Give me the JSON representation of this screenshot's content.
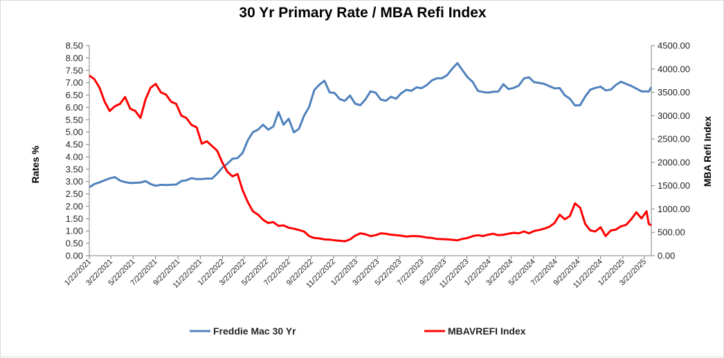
{
  "chart_data": {
    "type": "line",
    "title": "30 Yr Primary Rate / MBA Refi Index",
    "ylabel": "Rates %",
    "y2label": "MBA Refi Index",
    "ylim": [
      0,
      8.5
    ],
    "y2lim": [
      0,
      4500
    ],
    "yticks": [
      "0.00",
      "0.50",
      "1.00",
      "1.50",
      "2.00",
      "2.50",
      "3.00",
      "3.50",
      "4.00",
      "4.50",
      "5.00",
      "5.50",
      "6.00",
      "6.50",
      "7.00",
      "7.50",
      "8.00",
      "8.50"
    ],
    "y2ticks": [
      "0.00",
      "500.00",
      "1000.00",
      "1500.00",
      "2000.00",
      "2500.00",
      "3000.00",
      "3500.00",
      "4000.00",
      "4500.00"
    ],
    "xlim": [
      "1/22/2021",
      "4/10/2025"
    ],
    "xticks": [
      "1/22/2021",
      "3/22/2021",
      "5/22/2021",
      "7/22/2021",
      "9/22/2021",
      "11/22/2021",
      "1/22/2022",
      "3/22/2022",
      "5/22/2022",
      "7/22/2022",
      "9/22/2022",
      "11/22/2022",
      "1/22/2023",
      "3/22/2023",
      "5/22/2023",
      "7/22/2023",
      "9/22/2023",
      "11/22/2023",
      "1/22/2024",
      "3/22/2024",
      "5/22/2024",
      "7/22/2024",
      "9/22/2024",
      "11/22/2024",
      "1/22/2025",
      "3/22/2025"
    ],
    "legend_position": "bottom",
    "grid": false,
    "series": [
      {
        "name": "Freddie Mac 30 Yr",
        "axis": "left",
        "color": "#4f81bd",
        "points": [
          [
            "1/22/2021",
            2.77
          ],
          [
            "2/5/2021",
            2.9
          ],
          [
            "2/19/2021",
            2.97
          ],
          [
            "3/5/2021",
            3.05
          ],
          [
            "3/19/2021",
            3.13
          ],
          [
            "4/2/2021",
            3.18
          ],
          [
            "4/16/2021",
            3.04
          ],
          [
            "4/30/2021",
            2.98
          ],
          [
            "5/14/2021",
            2.94
          ],
          [
            "5/28/2021",
            2.95
          ],
          [
            "6/11/2021",
            2.96
          ],
          [
            "6/25/2021",
            3.02
          ],
          [
            "7/9/2021",
            2.9
          ],
          [
            "7/23/2021",
            2.83
          ],
          [
            "8/6/2021",
            2.87
          ],
          [
            "8/20/2021",
            2.86
          ],
          [
            "9/3/2021",
            2.87
          ],
          [
            "9/17/2021",
            2.88
          ],
          [
            "10/1/2021",
            3.02
          ],
          [
            "10/15/2021",
            3.05
          ],
          [
            "10/29/2021",
            3.14
          ],
          [
            "11/12/2021",
            3.1
          ],
          [
            "11/26/2021",
            3.1
          ],
          [
            "12/10/2021",
            3.12
          ],
          [
            "12/24/2021",
            3.12
          ],
          [
            "1/7/2022",
            3.32
          ],
          [
            "1/21/2022",
            3.56
          ],
          [
            "2/4/2022",
            3.72
          ],
          [
            "2/18/2022",
            3.92
          ],
          [
            "3/4/2022",
            3.95
          ],
          [
            "3/18/2022",
            4.16
          ],
          [
            "4/1/2022",
            4.67
          ],
          [
            "4/15/2022",
            5.0
          ],
          [
            "4/29/2022",
            5.1
          ],
          [
            "5/13/2022",
            5.3
          ],
          [
            "5/27/2022",
            5.1
          ],
          [
            "6/10/2022",
            5.23
          ],
          [
            "6/24/2022",
            5.81
          ],
          [
            "7/8/2022",
            5.3
          ],
          [
            "7/22/2022",
            5.54
          ],
          [
            "8/5/2022",
            4.99
          ],
          [
            "8/19/2022",
            5.13
          ],
          [
            "9/2/2022",
            5.66
          ],
          [
            "9/16/2022",
            6.02
          ],
          [
            "9/30/2022",
            6.7
          ],
          [
            "10/14/2022",
            6.92
          ],
          [
            "10/28/2022",
            7.08
          ],
          [
            "11/11/2022",
            6.61
          ],
          [
            "11/25/2022",
            6.58
          ],
          [
            "12/9/2022",
            6.33
          ],
          [
            "12/23/2022",
            6.27
          ],
          [
            "1/6/2023",
            6.48
          ],
          [
            "1/20/2023",
            6.15
          ],
          [
            "2/3/2023",
            6.09
          ],
          [
            "2/17/2023",
            6.32
          ],
          [
            "3/3/2023",
            6.65
          ],
          [
            "3/17/2023",
            6.6
          ],
          [
            "3/31/2023",
            6.32
          ],
          [
            "4/14/2023",
            6.27
          ],
          [
            "4/28/2023",
            6.43
          ],
          [
            "5/12/2023",
            6.35
          ],
          [
            "5/26/2023",
            6.57
          ],
          [
            "6/9/2023",
            6.71
          ],
          [
            "6/23/2023",
            6.67
          ],
          [
            "7/7/2023",
            6.81
          ],
          [
            "7/21/2023",
            6.78
          ],
          [
            "8/4/2023",
            6.9
          ],
          [
            "8/18/2023",
            7.09
          ],
          [
            "9/1/2023",
            7.18
          ],
          [
            "9/15/2023",
            7.18
          ],
          [
            "9/29/2023",
            7.31
          ],
          [
            "10/13/2023",
            7.57
          ],
          [
            "10/27/2023",
            7.79
          ],
          [
            "11/10/2023",
            7.5
          ],
          [
            "11/24/2023",
            7.22
          ],
          [
            "12/8/2023",
            7.03
          ],
          [
            "12/22/2023",
            6.67
          ],
          [
            "1/5/2024",
            6.62
          ],
          [
            "1/19/2024",
            6.6
          ],
          [
            "2/2/2024",
            6.63
          ],
          [
            "2/16/2024",
            6.64
          ],
          [
            "3/1/2024",
            6.94
          ],
          [
            "3/15/2024",
            6.74
          ],
          [
            "3/29/2024",
            6.79
          ],
          [
            "4/12/2024",
            6.88
          ],
          [
            "4/26/2024",
            7.17
          ],
          [
            "5/10/2024",
            7.22
          ],
          [
            "5/24/2024",
            7.02
          ],
          [
            "6/7/2024",
            6.99
          ],
          [
            "6/21/2024",
            6.95
          ],
          [
            "7/5/2024",
            6.86
          ],
          [
            "7/19/2024",
            6.77
          ],
          [
            "8/2/2024",
            6.78
          ],
          [
            "8/16/2024",
            6.49
          ],
          [
            "8/30/2024",
            6.35
          ],
          [
            "9/13/2024",
            6.08
          ],
          [
            "9/27/2024",
            6.09
          ],
          [
            "10/11/2024",
            6.44
          ],
          [
            "10/25/2024",
            6.72
          ],
          [
            "11/8/2024",
            6.79
          ],
          [
            "11/22/2024",
            6.84
          ],
          [
            "12/6/2024",
            6.69
          ],
          [
            "12/20/2024",
            6.72
          ],
          [
            "1/3/2025",
            6.91
          ],
          [
            "1/17/2025",
            7.04
          ],
          [
            "1/31/2025",
            6.95
          ],
          [
            "2/14/2025",
            6.87
          ],
          [
            "2/28/2025",
            6.76
          ],
          [
            "3/14/2025",
            6.65
          ],
          [
            "3/28/2025",
            6.65
          ],
          [
            "4/3/2025",
            6.64
          ],
          [
            "4/10/2025",
            6.82
          ]
        ]
      },
      {
        "name": "MBAVREFI Index",
        "axis": "right",
        "color": "#ff0000",
        "points": [
          [
            "1/22/2021",
            3860
          ],
          [
            "2/5/2021",
            3780
          ],
          [
            "2/19/2021",
            3600
          ],
          [
            "3/5/2021",
            3300
          ],
          [
            "3/19/2021",
            3100
          ],
          [
            "4/2/2021",
            3200
          ],
          [
            "4/16/2021",
            3250
          ],
          [
            "4/30/2021",
            3400
          ],
          [
            "5/14/2021",
            3150
          ],
          [
            "5/28/2021",
            3100
          ],
          [
            "6/11/2021",
            2950
          ],
          [
            "6/25/2021",
            3350
          ],
          [
            "7/9/2021",
            3600
          ],
          [
            "7/23/2021",
            3680
          ],
          [
            "8/6/2021",
            3500
          ],
          [
            "8/20/2021",
            3450
          ],
          [
            "9/3/2021",
            3300
          ],
          [
            "9/17/2021",
            3250
          ],
          [
            "10/1/2021",
            3000
          ],
          [
            "10/15/2021",
            2950
          ],
          [
            "10/29/2021",
            2800
          ],
          [
            "11/12/2021",
            2750
          ],
          [
            "11/26/2021",
            2400
          ],
          [
            "12/10/2021",
            2450
          ],
          [
            "12/24/2021",
            2350
          ],
          [
            "1/7/2022",
            2250
          ],
          [
            "1/21/2022",
            2000
          ],
          [
            "2/4/2022",
            1800
          ],
          [
            "2/18/2022",
            1700
          ],
          [
            "3/4/2022",
            1750
          ],
          [
            "3/18/2022",
            1400
          ],
          [
            "4/1/2022",
            1150
          ],
          [
            "4/15/2022",
            950
          ],
          [
            "4/29/2022",
            880
          ],
          [
            "5/13/2022",
            770
          ],
          [
            "5/27/2022",
            700
          ],
          [
            "6/10/2022",
            720
          ],
          [
            "6/24/2022",
            640
          ],
          [
            "7/8/2022",
            650
          ],
          [
            "7/22/2022",
            600
          ],
          [
            "8/5/2022",
            580
          ],
          [
            "8/19/2022",
            550
          ],
          [
            "9/2/2022",
            520
          ],
          [
            "9/16/2022",
            420
          ],
          [
            "9/30/2022",
            380
          ],
          [
            "10/14/2022",
            370
          ],
          [
            "10/28/2022",
            350
          ],
          [
            "11/11/2022",
            345
          ],
          [
            "11/25/2022",
            330
          ],
          [
            "12/9/2022",
            320
          ],
          [
            "12/23/2022",
            310
          ],
          [
            "1/6/2023",
            350
          ],
          [
            "1/20/2023",
            430
          ],
          [
            "2/3/2023",
            480
          ],
          [
            "2/17/2023",
            460
          ],
          [
            "3/3/2023",
            420
          ],
          [
            "3/17/2023",
            440
          ],
          [
            "3/31/2023",
            480
          ],
          [
            "4/14/2023",
            470
          ],
          [
            "4/28/2023",
            450
          ],
          [
            "5/12/2023",
            440
          ],
          [
            "5/26/2023",
            430
          ],
          [
            "6/9/2023",
            410
          ],
          [
            "6/23/2023",
            420
          ],
          [
            "7/7/2023",
            420
          ],
          [
            "7/21/2023",
            410
          ],
          [
            "8/4/2023",
            390
          ],
          [
            "8/18/2023",
            380
          ],
          [
            "9/1/2023",
            360
          ],
          [
            "9/15/2023",
            355
          ],
          [
            "9/29/2023",
            350
          ],
          [
            "10/13/2023",
            340
          ],
          [
            "10/27/2023",
            330
          ],
          [
            "11/10/2023",
            360
          ],
          [
            "11/24/2023",
            380
          ],
          [
            "12/8/2023",
            420
          ],
          [
            "12/22/2023",
            440
          ],
          [
            "1/5/2024",
            420
          ],
          [
            "1/19/2024",
            450
          ],
          [
            "2/2/2024",
            470
          ],
          [
            "2/16/2024",
            440
          ],
          [
            "3/1/2024",
            450
          ],
          [
            "3/15/2024",
            470
          ],
          [
            "3/29/2024",
            490
          ],
          [
            "4/12/2024",
            480
          ],
          [
            "4/26/2024",
            520
          ],
          [
            "5/10/2024",
            480
          ],
          [
            "5/24/2024",
            530
          ],
          [
            "6/7/2024",
            550
          ],
          [
            "6/21/2024",
            580
          ],
          [
            "7/5/2024",
            620
          ],
          [
            "7/19/2024",
            700
          ],
          [
            "8/2/2024",
            880
          ],
          [
            "8/16/2024",
            780
          ],
          [
            "8/30/2024",
            850
          ],
          [
            "9/13/2024",
            1120
          ],
          [
            "9/27/2024",
            1030
          ],
          [
            "10/11/2024",
            680
          ],
          [
            "10/25/2024",
            540
          ],
          [
            "11/8/2024",
            520
          ],
          [
            "11/22/2024",
            610
          ],
          [
            "12/6/2024",
            420
          ],
          [
            "12/20/2024",
            540
          ],
          [
            "1/3/2025",
            560
          ],
          [
            "1/17/2025",
            630
          ],
          [
            "1/31/2025",
            660
          ],
          [
            "2/14/2025",
            780
          ],
          [
            "2/28/2025",
            930
          ],
          [
            "3/14/2025",
            800
          ],
          [
            "3/28/2025",
            950
          ],
          [
            "4/3/2025",
            680
          ],
          [
            "4/10/2025",
            650
          ]
        ]
      }
    ]
  }
}
